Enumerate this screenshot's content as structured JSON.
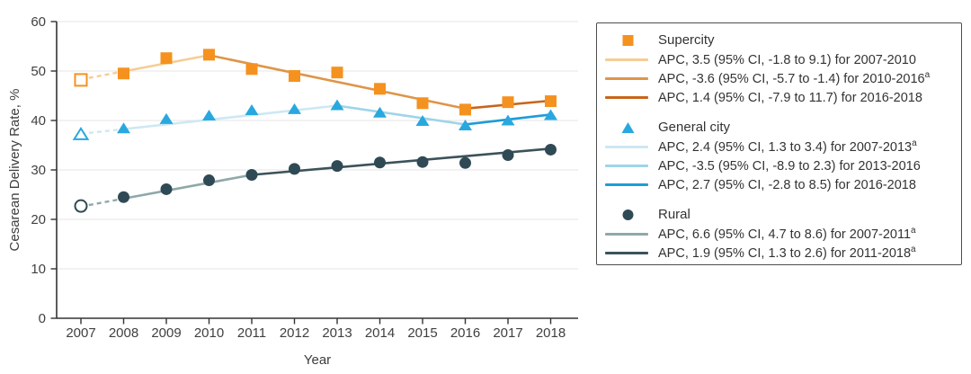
{
  "figure_title": "Cesarean delivery rate trends figure",
  "colors": {
    "axis": "#333333",
    "grid": "#e4e4e4",
    "tick_text": "#404040",
    "legend_border": "#4d4d4d",
    "legend_text": "#333333"
  },
  "chart_data": {
    "type": "line",
    "title": "",
    "xlabel": "Year",
    "ylabel": "Cesarean Delivery Rate, %",
    "x": [
      2007,
      2008,
      2009,
      2010,
      2011,
      2012,
      2013,
      2014,
      2015,
      2016,
      2017,
      2018
    ],
    "ylim": [
      0,
      60
    ],
    "yticks": [
      0,
      10,
      20,
      30,
      40,
      50,
      60
    ],
    "grid": true,
    "legend_position": "right",
    "note": "2007 points shown as open markers connected by dashed trend line",
    "series": [
      {
        "name": "Supercity",
        "marker": "square",
        "marker_color": "#f5921f",
        "first_point_open": true,
        "values": [
          48.2,
          49.5,
          52.6,
          53.3,
          50.4,
          49.0,
          49.7,
          46.4,
          43.5,
          42.2,
          43.7,
          43.9
        ],
        "trend_segments": [
          {
            "label": "APC, 3.5 (95% CI, -1.8 to 9.1) for 2007-2010",
            "sup": "",
            "color": "#f5cd95",
            "from": [
              2007,
              48.3
            ],
            "to": [
              2010,
              53.2
            ],
            "dashed_until": 2008
          },
          {
            "label": "APC, -3.6 (95% CI, -5.7 to -1.4) for 2010-2016",
            "sup": "a",
            "color": "#de9549",
            "from": [
              2010,
              53.2
            ],
            "to": [
              2016,
              42.4
            ]
          },
          {
            "label": "APC, 1.4 (95% CI, -7.9 to 11.7) for 2016-2018",
            "sup": "",
            "color": "#c8651b",
            "from": [
              2016,
              42.4
            ],
            "to": [
              2018,
              44.0
            ]
          }
        ]
      },
      {
        "name": "General city",
        "marker": "triangle",
        "marker_color": "#29a8e0",
        "first_point_open": true,
        "values": [
          37.2,
          38.4,
          40.3,
          41.0,
          42.1,
          42.3,
          43.1,
          41.6,
          39.9,
          39.0,
          40.0,
          41.1
        ],
        "trend_segments": [
          {
            "label": "APC, 2.4 (95% CI, 1.3 to 3.4) for 2007-2013",
            "sup": "a",
            "color": "#cde8f4",
            "from": [
              2007,
              37.3
            ],
            "to": [
              2013,
              43.0
            ],
            "dashed_until": 2008
          },
          {
            "label": "APC, -3.5 (95% CI, -8.9 to 2.3) for 2013-2016",
            "sup": "",
            "color": "#9fd4e8",
            "from": [
              2013,
              43.0
            ],
            "to": [
              2016,
              39.2
            ]
          },
          {
            "label": "APC, 2.7 (95% CI, -2.8 to 8.5) for 2016-2018",
            "sup": "",
            "color": "#1e9cd8",
            "from": [
              2016,
              39.2
            ],
            "to": [
              2018,
              41.2
            ]
          }
        ]
      },
      {
        "name": "Rural",
        "marker": "circle",
        "marker_color": "#2f4a55",
        "first_point_open": true,
        "values": [
          22.7,
          24.5,
          26.1,
          27.9,
          29.0,
          30.2,
          30.8,
          31.5,
          31.6,
          31.4,
          33.0,
          34.1
        ],
        "trend_segments": [
          {
            "label": "APC, 6.6 (95% CI, 4.7 to 8.6) for 2007-2011",
            "sup": "a",
            "color": "#8fa8a8",
            "from": [
              2007,
              22.6
            ],
            "to": [
              2011,
              29.0
            ],
            "dashed_until": 2008
          },
          {
            "label": "APC, 1.9 (95% CI, 1.3 to 2.6) for 2011-2018",
            "sup": "a",
            "color": "#3c525a",
            "from": [
              2011,
              29.0
            ],
            "to": [
              2018,
              34.3
            ]
          }
        ]
      }
    ]
  }
}
